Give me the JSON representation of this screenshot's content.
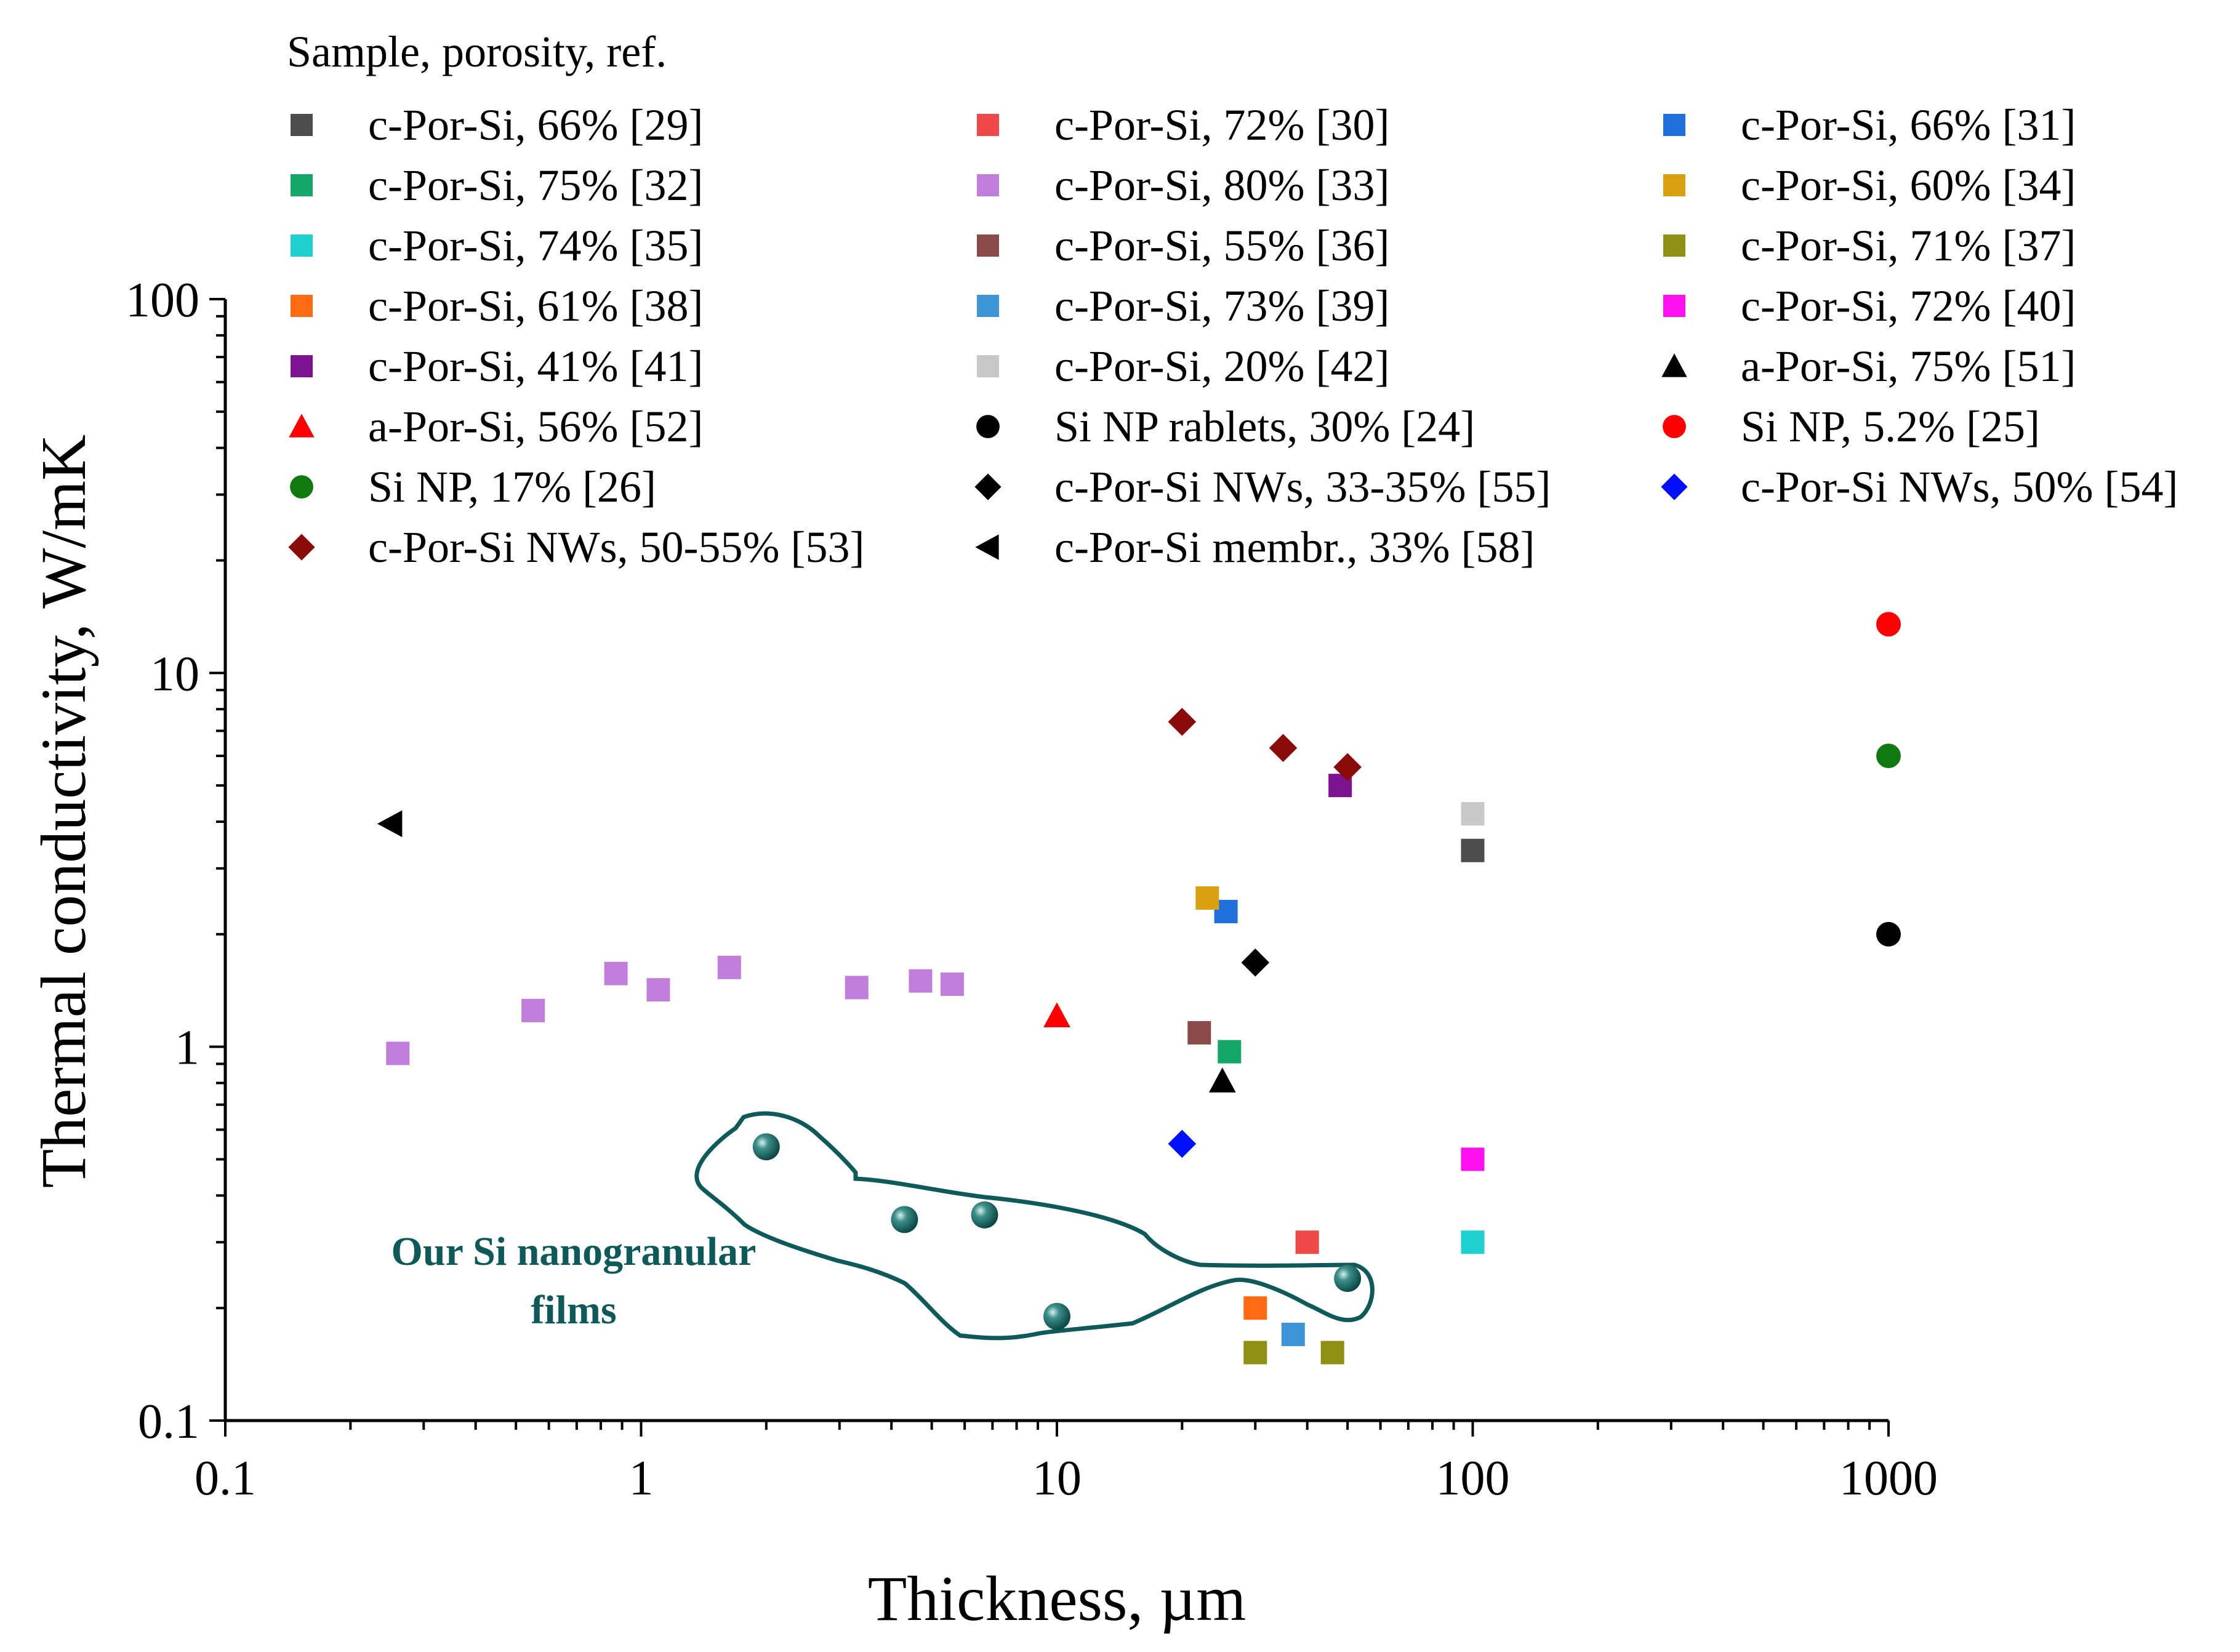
{
  "chart_data": {
    "type": "scatter",
    "x_scale": "log",
    "y_scale": "log",
    "xlabel": "Thickness, µm",
    "ylabel": "Thermal conductivity, W/mK",
    "xlim": [
      0.1,
      1000
    ],
    "ylim": [
      0.1,
      100
    ],
    "x_ticks": [
      0.1,
      1,
      10,
      100,
      1000
    ],
    "x_tick_labels": [
      "0.1",
      "1",
      "10",
      "100",
      "1000"
    ],
    "y_ticks": [
      0.1,
      1,
      10,
      100
    ],
    "y_tick_labels": [
      "0.1",
      "1",
      "10",
      "100"
    ],
    "grid": false,
    "legend_title": "Sample, porosity, ref.",
    "legend_position": "top",
    "annotation": {
      "label_line1": "Our Si nanogranular",
      "label_line2": "films",
      "color": "#0e5a5a",
      "points": [
        {
          "x": 2.0,
          "y": 0.54
        },
        {
          "x": 4.3,
          "y": 0.345
        },
        {
          "x": 6.7,
          "y": 0.355
        },
        {
          "x": 10.0,
          "y": 0.19
        },
        {
          "x": 50.0,
          "y": 0.24
        }
      ]
    },
    "series": [
      {
        "name": "c-Por-Si, 66% [29]",
        "marker": "square",
        "color": "#4d4d4d",
        "points": [
          {
            "x": 100,
            "y": 3.35
          }
        ]
      },
      {
        "name": "c-Por-Si, 72% [30]",
        "marker": "square",
        "color": "#f04848",
        "points": [
          {
            "x": 40,
            "y": 0.3
          }
        ]
      },
      {
        "name": "c-Por-Si, 66% [31]",
        "marker": "square",
        "color": "#1f6fdc",
        "points": [
          {
            "x": 25.5,
            "y": 2.3
          }
        ]
      },
      {
        "name": "c-Por-Si, 75% [32]",
        "marker": "square",
        "color": "#13a867",
        "points": [
          {
            "x": 26,
            "y": 0.97
          }
        ]
      },
      {
        "name": "c-Por-Si, 80% [33]",
        "marker": "square",
        "color": "#c17ddb",
        "points": [
          {
            "x": 0.26,
            "y": 0.96
          },
          {
            "x": 0.55,
            "y": 1.25
          },
          {
            "x": 0.87,
            "y": 1.57
          },
          {
            "x": 1.1,
            "y": 1.42
          },
          {
            "x": 1.63,
            "y": 1.63
          },
          {
            "x": 3.3,
            "y": 1.44
          },
          {
            "x": 4.7,
            "y": 1.5
          },
          {
            "x": 5.6,
            "y": 1.47
          }
        ]
      },
      {
        "name": "c-Por-Si, 60% [34]",
        "marker": "square",
        "color": "#d9a010",
        "points": [
          {
            "x": 23,
            "y": 2.5
          }
        ]
      },
      {
        "name": "c-Por-Si, 74% [35]",
        "marker": "square",
        "color": "#1fd0d0",
        "points": [
          {
            "x": 100,
            "y": 0.3
          }
        ]
      },
      {
        "name": "c-Por-Si, 55% [36]",
        "marker": "square",
        "color": "#8b4a4a",
        "points": [
          {
            "x": 22,
            "y": 1.09
          }
        ]
      },
      {
        "name": "c-Por-Si, 71% [37]",
        "marker": "square",
        "color": "#8f8f13",
        "points": [
          {
            "x": 30,
            "y": 0.152
          },
          {
            "x": 46,
            "y": 0.152
          }
        ]
      },
      {
        "name": "c-Por-Si, 61% [38]",
        "marker": "square",
        "color": "#ff6a13",
        "points": [
          {
            "x": 30,
            "y": 0.2
          }
        ]
      },
      {
        "name": "c-Por-Si, 73% [39]",
        "marker": "square",
        "color": "#3d94d6",
        "points": [
          {
            "x": 37,
            "y": 0.17
          }
        ]
      },
      {
        "name": "c-Por-Si, 72% [40]",
        "marker": "square",
        "color": "#ff10ee",
        "points": [
          {
            "x": 100,
            "y": 0.5
          }
        ]
      },
      {
        "name": "c-Por-Si, 41% [41]",
        "marker": "square",
        "color": "#7e1392",
        "points": [
          {
            "x": 48,
            "y": 5.0
          }
        ]
      },
      {
        "name": "c-Por-Si, 20% [42]",
        "marker": "square",
        "color": "#c8c8c8",
        "points": [
          {
            "x": 100,
            "y": 4.2
          }
        ]
      },
      {
        "name": "a-Por-Si, 75% [51]",
        "marker": "triangle-up",
        "color": "#000000",
        "points": [
          {
            "x": 25,
            "y": 0.81
          }
        ]
      },
      {
        "name": "a-Por-Si, 56% [52]",
        "marker": "triangle-up",
        "color": "#ff0000",
        "points": [
          {
            "x": 10,
            "y": 1.21
          }
        ]
      },
      {
        "name": "Si NP rablets, 30% [24]",
        "marker": "circle",
        "color": "#000000",
        "points": [
          {
            "x": 1000,
            "y": 2.0
          }
        ]
      },
      {
        "name": "Si NP, 5.2% [25]",
        "marker": "circle",
        "color": "#ff0000",
        "points": [
          {
            "x": 1000,
            "y": 13.5
          }
        ]
      },
      {
        "name": "Si NP, 17% [26]",
        "marker": "circle",
        "color": "#107a10",
        "points": [
          {
            "x": 1000,
            "y": 6.0
          }
        ]
      },
      {
        "name": "c-Por-Si NWs, 33-35% [55]",
        "marker": "diamond",
        "color": "#000000",
        "points": [
          {
            "x": 30,
            "y": 1.68
          }
        ]
      },
      {
        "name": "c-Por-Si NWs, 50% [54]",
        "marker": "diamond",
        "color": "#0010ff",
        "points": [
          {
            "x": 20,
            "y": 0.55
          }
        ]
      },
      {
        "name": "c-Por-Si NWs, 50-55% [53]",
        "marker": "diamond",
        "color": "#8b0a0a",
        "points": [
          {
            "x": 20,
            "y": 7.4
          },
          {
            "x": 35,
            "y": 6.3
          },
          {
            "x": 50,
            "y": 5.6
          }
        ]
      },
      {
        "name": "c-Por-Si membr., 33% [58]",
        "marker": "triangle-left",
        "color": "#000000",
        "points": [
          {
            "x": 0.25,
            "y": 3.95
          }
        ]
      }
    ]
  }
}
